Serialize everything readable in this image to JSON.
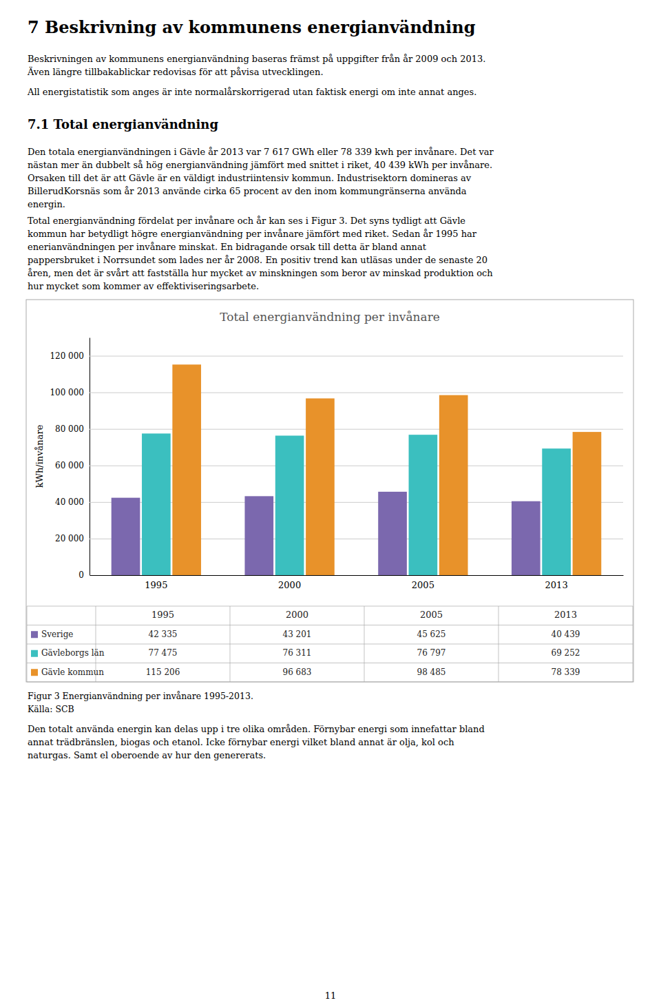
{
  "page_title": "7   Beskrivning av kommunens energianvändning",
  "para1": "Beskrivningen av kommunens energianvändning baseras främst på uppgifter från år 2009 och 2013.\nÄven längre tillbakablickar redovisas för att påvisa utvecklingen.",
  "para2": "All energistatistik som anges är inte normalårskorrigerad utan faktisk energi om inte annat anges.",
  "section_title": "7.1   Total energianvändning",
  "para3": "Den totala energianvändningen i Gävle år 2013 var 7 617 GWh eller 78 339 kwh per invånare. Det var\nnästan mer än dubbelt så hög energianvändning jämfört med snittet i riket, 40 439 kWh per invånare.\nOrsaken till det är att Gävle är en väldigt industriintensiv kommun. Industrisektorn domineras av\nBillerudKorsnäs som år 2013 använde cirka 65 procent av den inom kommungränserna använda\nenergin.",
  "para4": "Total energianvändning fördelat per invånare och år kan ses i Figur 3. Det syns tydligt att Gävle\nkommun har betydligt högre energianvändning per invånare jämfört med riket. Sedan år 1995 har\nenerianvändningen per invånare minskat. En bidragande orsak till detta är bland annat\npappersbruket i Norrsundet som lades ner år 2008. En positiv trend kan utläsas under de senaste 20\nåren, men det är svårt att fastställa hur mycket av minskningen som beror av minskad produktion och\nhur mycket som kommer av effektiviseringsarbete.",
  "chart_data": {
    "type": "bar",
    "title": "Total energianvändning per invånare",
    "categories": [
      "1995",
      "2000",
      "2005",
      "2013"
    ],
    "series": [
      {
        "name": "Sverige",
        "color": "#7B68AE",
        "values": [
          42335,
          43201,
          45625,
          40439
        ],
        "value_labels": [
          "42 335",
          "43 201",
          "45 625",
          "40 439"
        ]
      },
      {
        "name": "Gävleborgs län",
        "color": "#3BBFBF",
        "values": [
          77475,
          76311,
          76797,
          69252
        ],
        "value_labels": [
          "77 475",
          "76 311",
          "76 797",
          "69 252"
        ]
      },
      {
        "name": "Gävle kommun",
        "color": "#E8922A",
        "values": [
          115206,
          96683,
          98485,
          78339
        ],
        "value_labels": [
          "115 206",
          "96 683",
          "98 485",
          "78 339"
        ]
      }
    ],
    "ylabel": "kWh/invånare",
    "ylim": [
      0,
      130000
    ],
    "yticks": [
      0,
      {
        "value": 20000,
        "label": "20 000"
      },
      {
        "value": 40000,
        "label": "40 000"
      },
      {
        "value": 60000,
        "label": "60 000"
      },
      {
        "value": 80000,
        "label": "80 000"
      },
      {
        "value": 100000,
        "label": "100 000"
      },
      {
        "value": 120000,
        "label": "120 000"
      }
    ],
    "grid": true,
    "legend": "bottom"
  },
  "fig_caption": "Figur 3 Energianvändning per invånare 1995-2013.\nKälla: SCB",
  "para5": "Den totalt använda energin kan delas upp i tre olika områden. Förnybar energi som innefattar bland\nannat trädbränslen, biogas och etanol. Icke förnybar energi vilket bland annat är olja, kol och\nnaturgas. Samt el oberoende av hur den genererats.",
  "page_number": "11"
}
